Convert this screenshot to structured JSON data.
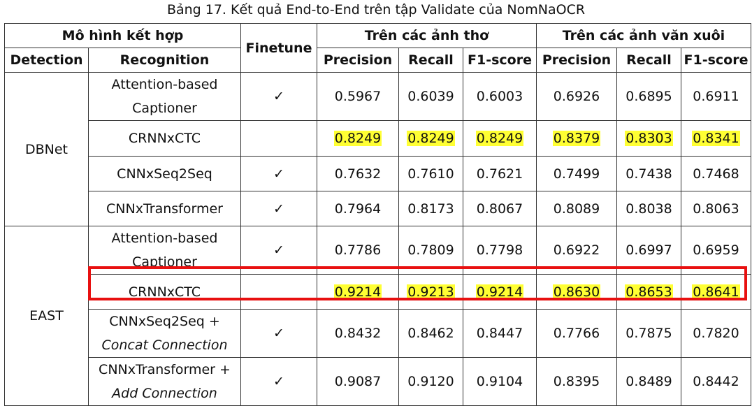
{
  "caption": "Bảng 17. Kết quả End-to-End trên tập Validate của NomNaOCR",
  "headers": {
    "model_group": "Mô hình kết hợp",
    "detection": "Detection",
    "recognition": "Recognition",
    "finetune": "Finetune",
    "poetry_group": "Trên các ảnh thơ",
    "prose_group": "Trên các ảnh văn xuôi",
    "precision": "Precision",
    "recall": "Recall",
    "f1": "F1-score"
  },
  "check_mark": "✓",
  "highlight_color": "#ffff33",
  "box_color": "#e81010",
  "groups": [
    {
      "detection": "DBNet",
      "rows": [
        {
          "rec1": "Attention-based",
          "rec2": "Captioner",
          "finetune": "✓",
          "values": [
            "0.5967",
            "0.6039",
            "0.6003",
            "0.6926",
            "0.6895",
            "0.6911"
          ],
          "highlight": false
        },
        {
          "rec1": "CRNNxCTC",
          "rec2": "",
          "finetune": "",
          "values": [
            "0.8249",
            "0.8249",
            "0.8249",
            "0.8379",
            "0.8303",
            "0.8341"
          ],
          "highlight": true
        },
        {
          "rec1": "CNNxSeq2Seq",
          "rec2": "",
          "finetune": "✓",
          "values": [
            "0.7632",
            "0.7610",
            "0.7621",
            "0.7499",
            "0.7438",
            "0.7468"
          ],
          "highlight": false
        },
        {
          "rec1": "CNNxTransformer",
          "rec2": "",
          "finetune": "✓",
          "values": [
            "0.7964",
            "0.8173",
            "0.8067",
            "0.8089",
            "0.8038",
            "0.8063"
          ],
          "highlight": false
        }
      ]
    },
    {
      "detection": "EAST",
      "rows": [
        {
          "rec1": "Attention-based",
          "rec2": "Captioner",
          "finetune": "✓",
          "values": [
            "0.7786",
            "0.7809",
            "0.7798",
            "0.6922",
            "0.6997",
            "0.6959"
          ],
          "highlight": false
        },
        {
          "rec1": "CRNNxCTC",
          "rec2": "",
          "finetune": "",
          "values": [
            "0.9214",
            "0.9213",
            "0.9214",
            "0.8630",
            "0.8653",
            "0.8641"
          ],
          "highlight": true
        },
        {
          "rec1": "CNNxSeq2Seq +",
          "rec2": "Concat Connection",
          "finetune": "✓",
          "values": [
            "0.8432",
            "0.8462",
            "0.8447",
            "0.7766",
            "0.7875",
            "0.7820"
          ],
          "highlight": false
        },
        {
          "rec1": "CNNxTransformer +",
          "rec2": "Add Connection",
          "finetune": "✓",
          "values": [
            "0.9087",
            "0.9120",
            "0.9104",
            "0.8395",
            "0.8489",
            "0.8442"
          ],
          "highlight": false
        }
      ]
    }
  ]
}
